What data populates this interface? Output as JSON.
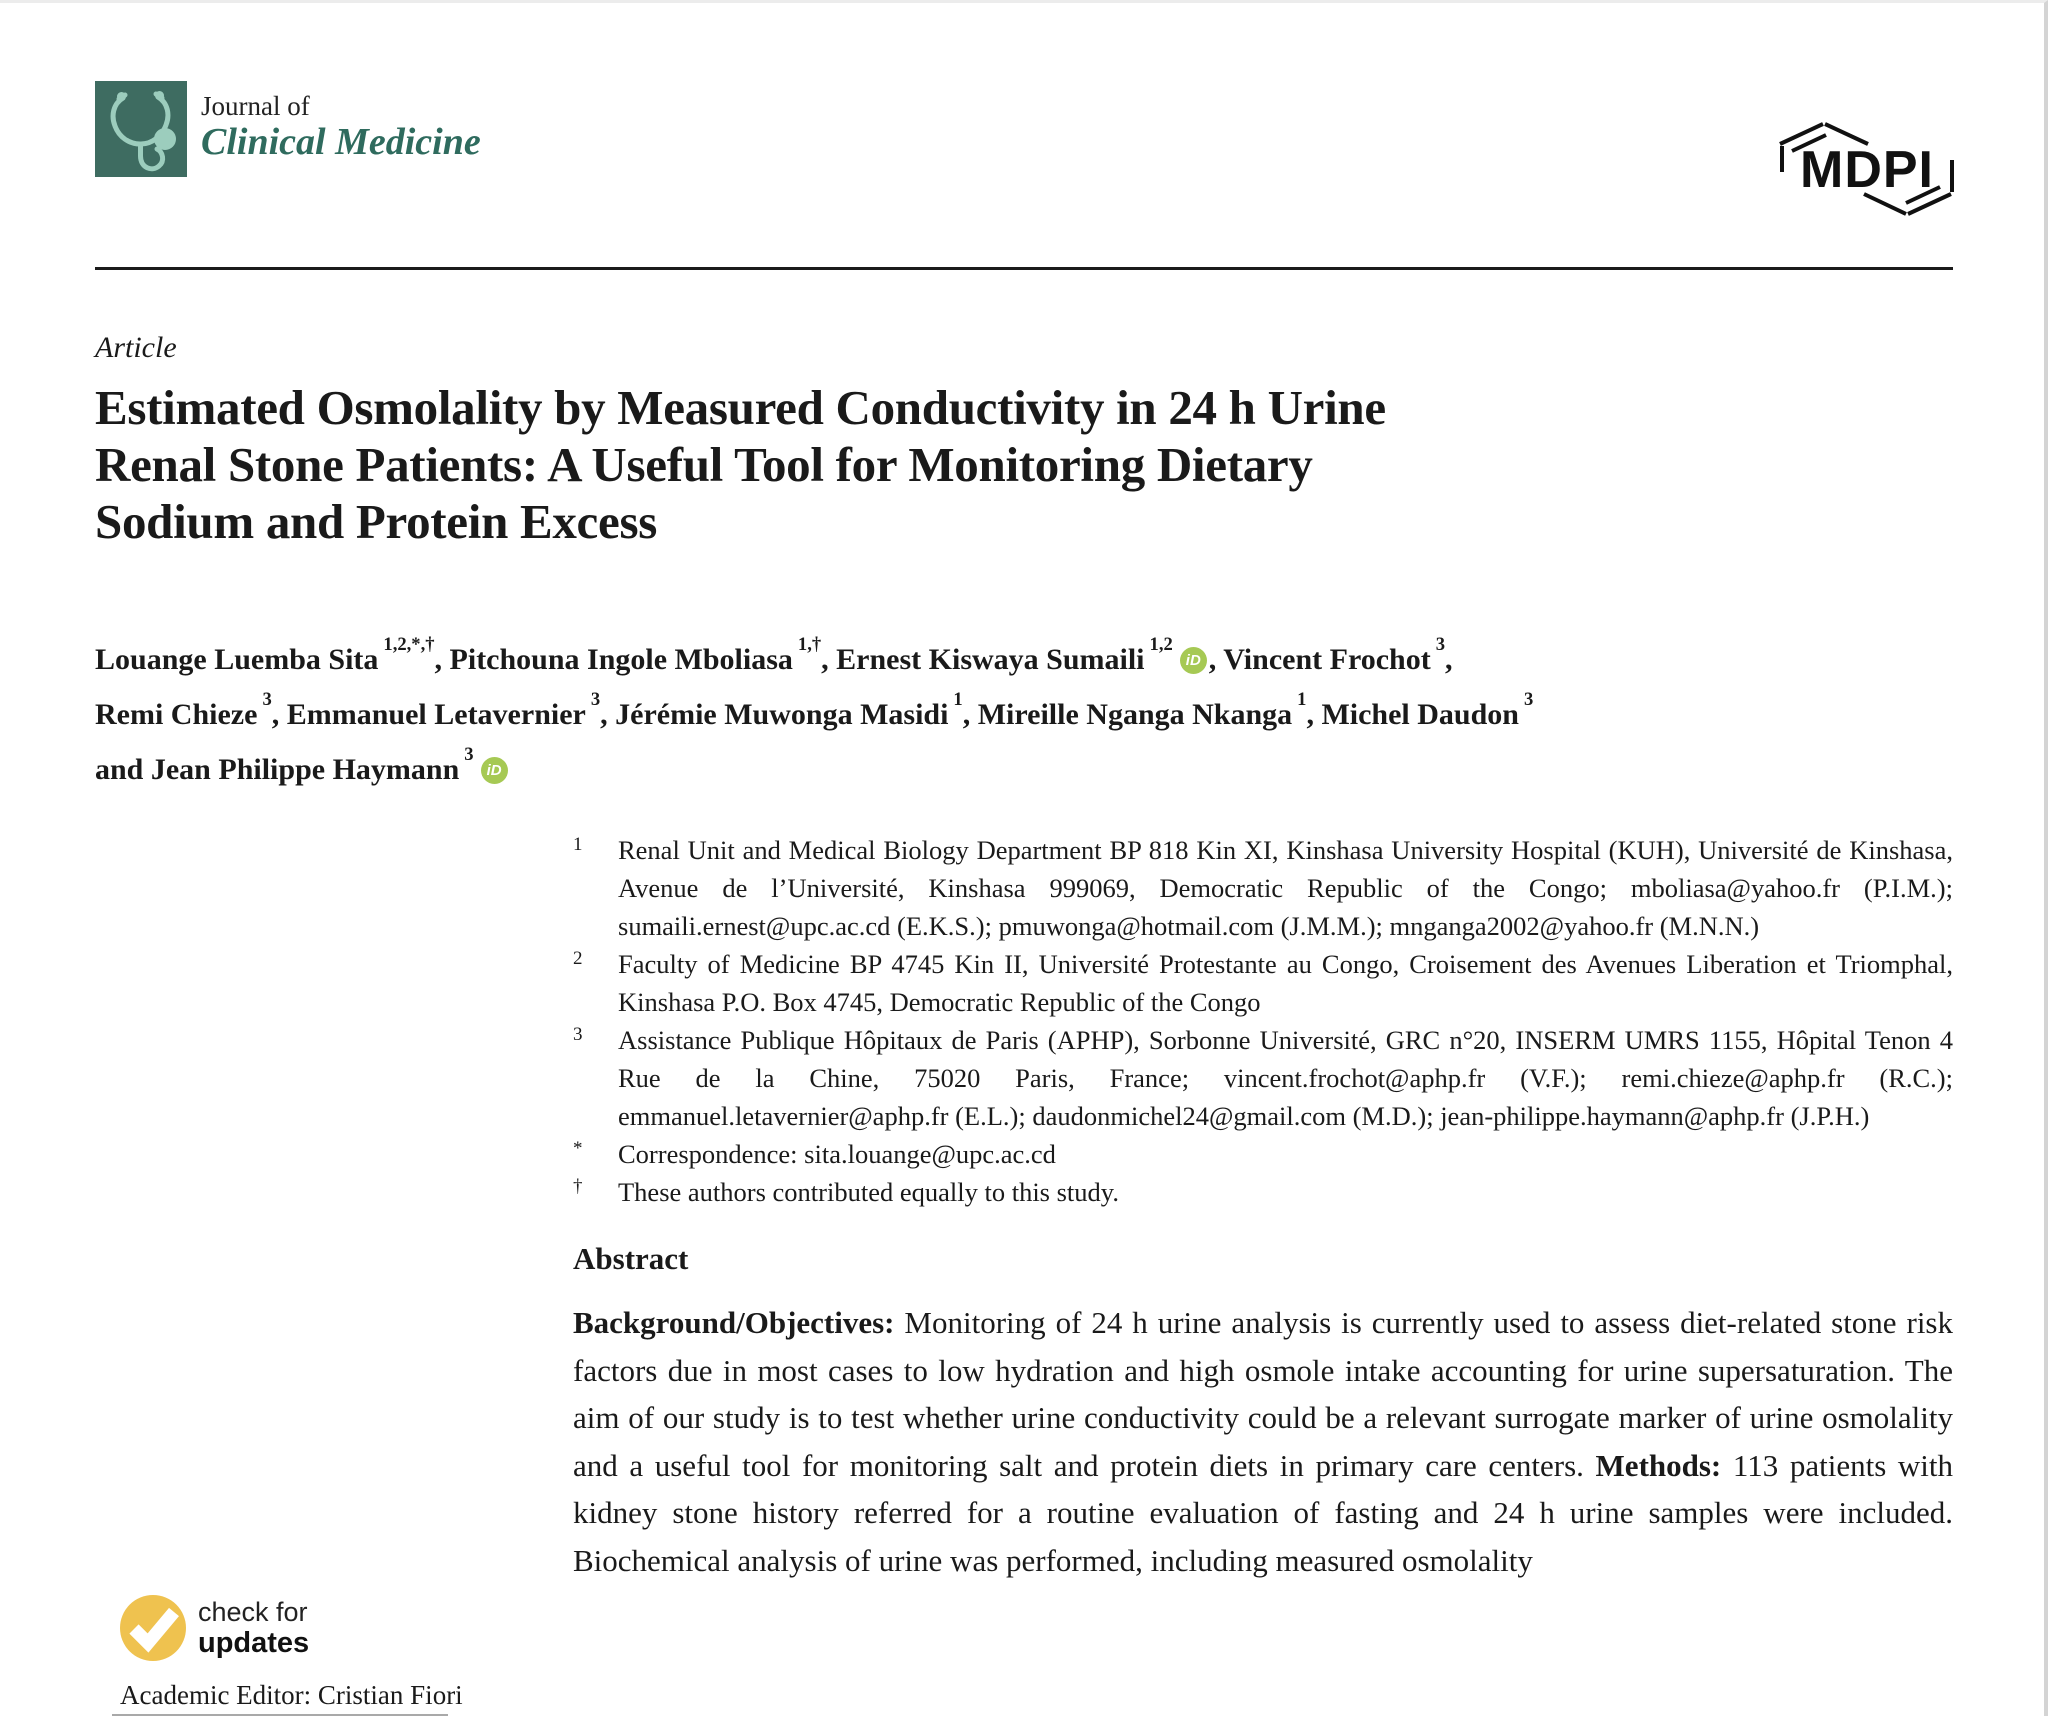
{
  "header": {
    "journal_prefix": "Journal of",
    "journal_name": "Clinical Medicine",
    "publisher": "MDPI"
  },
  "article": {
    "type_label": "Article",
    "title_lines": [
      "Estimated Osmolality by Measured Conductivity in 24 h Urine",
      "Renal Stone Patients: A Useful Tool for Monitoring Dietary",
      "Sodium and Protein Excess"
    ],
    "authors": [
      {
        "name": "Louange Luemba Sita",
        "sup": "1,2,*,†",
        "orcid": false,
        "after": ", ",
        "line": 0
      },
      {
        "name": "Pitchouna Ingole Mboliasa",
        "sup": "1,†",
        "orcid": false,
        "after": ", ",
        "line": 0
      },
      {
        "name": "Ernest Kiswaya Sumaili",
        "sup": "1,2",
        "orcid": true,
        "after": ", ",
        "line": 0
      },
      {
        "name": "Vincent Frochot",
        "sup": "3",
        "orcid": false,
        "after": ",",
        "line": 0
      },
      {
        "name": "Remi Chieze",
        "sup": "3",
        "orcid": false,
        "after": ", ",
        "line": 1
      },
      {
        "name": "Emmanuel Letavernier",
        "sup": "3",
        "orcid": false,
        "after": ", ",
        "line": 1
      },
      {
        "name": "Jérémie Muwonga Masidi",
        "sup": "1",
        "orcid": false,
        "after": ", ",
        "line": 1
      },
      {
        "name": "Mireille Nganga Nkanga",
        "sup": "1",
        "orcid": false,
        "after": ", ",
        "line": 1
      },
      {
        "name": "Michel Daudon",
        "sup": "3",
        "orcid": false,
        "after": "",
        "line": 1
      },
      {
        "name": "and Jean Philippe Haymann",
        "sup": "3",
        "orcid": true,
        "after": "",
        "line": 2
      }
    ],
    "affiliations": [
      {
        "marker": "1",
        "text": "Renal Unit and Medical Biology Department BP 818 Kin XI, Kinshasa University Hospital (KUH), Université de Kinshasa, Avenue de l’Université, Kinshasa 999069, Democratic Republic of the Congo; mboliasa@yahoo.fr (P.I.M.); sumaili.ernest@upc.ac.cd (E.K.S.); pmuwonga@hotmail.com (J.M.M.); mnganga2002@yahoo.fr (M.N.N.)"
      },
      {
        "marker": "2",
        "text": "Faculty of Medicine BP 4745 Kin II, Université Protestante au Congo, Croisement des Avenues Liberation et Triomphal, Kinshasa P.O. Box 4745, Democratic Republic of the Congo"
      },
      {
        "marker": "3",
        "text": "Assistance Publique Hôpitaux de Paris (APHP), Sorbonne Université, GRC n°20, INSERM UMRS 1155, Hôpital Tenon 4 Rue de la Chine, 75020 Paris, France; vincent.frochot@aphp.fr (V.F.); remi.chieze@aphp.fr (R.C.); emmanuel.letavernier@aphp.fr (E.L.); daudonmichel24@gmail.com (M.D.); jean-philippe.haymann@aphp.fr (J.P.H.)"
      },
      {
        "marker": "*",
        "text": "Correspondence: sita.louange@upc.ac.cd"
      },
      {
        "marker": "†",
        "text": "These authors contributed equally to this study."
      }
    ],
    "abstract": {
      "heading": "Abstract",
      "segments": [
        {
          "bold": "Background/Objectives:",
          "text": " Monitoring of 24 h urine analysis is currently used to assess diet-related stone risk factors due in most cases to low hydration and high osmole intake accounting for urine supersaturation. The aim of our study is to test whether urine conductivity could be a relevant surrogate marker of urine osmolality and a useful tool for monitoring salt and protein diets in primary care centers. "
        },
        {
          "bold": "Methods:",
          "text": " 113 patients with kidney stone history referred for a routine evaluation of fasting and 24 h urine samples were included. Biochemical analysis of urine was performed, including measured osmolality"
        }
      ]
    }
  },
  "sidebar": {
    "check_badge": {
      "line1": "check for",
      "line2": "updates"
    },
    "academic_editor": "Academic Editor: Cristian Fiori"
  },
  "icons": {
    "journal_logo": "stethoscope-icon",
    "badge": "check-icon",
    "orcid_label": "iD"
  },
  "colors": {
    "journal_teal": "#3E6C61",
    "journal_teal_light": "#9CCDBD",
    "journal_name_teal": "#2F6B5E",
    "orcid_green": "#A6C954",
    "badge_yellow": "#EFC24F",
    "ink": "#1a1a1a"
  }
}
